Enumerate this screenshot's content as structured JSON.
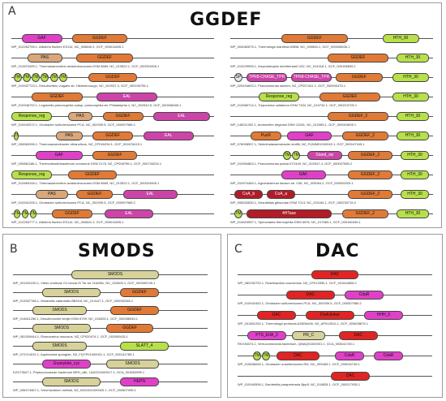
{
  "panels": [
    {
      "id": "A",
      "label": "A",
      "title": "GGDEF",
      "rows": [
        {
          "caption": "WP_012262755.1, Aliivibrio fischeri ES114, NC_006840.2, GCF_000011805.1",
          "domains": [
            {
              "n": "GAF",
              "c": "#e040c8",
              "s": 0.05,
              "e": 0.25
            },
            {
              "n": "GGDEF",
              "c": "#e07a36",
              "s": 0.3,
              "e": 0.57
            }
          ]
        },
        {
          "caption": "WP_012870499.1, Thermanaerovibrio acidaminovorans DSM 6589, NC_013522.1, GCF_000024905.1",
          "domains": [
            {
              "n": "PAS",
              "c": "#d9a77a",
              "s": 0.08,
              "e": 0.25
            },
            {
              "n": "GGDEF",
              "c": "#e07a36",
              "s": 0.32,
              "e": 0.6
            }
          ]
        },
        {
          "caption": "WP_010937723.1, Desulfovibrio vulgaris str. Hildenborough, NC_002937.3, GCF_000195755.1",
          "domains": [
            {
              "n": "TM",
              "c": "#b8e04a",
              "s": 0.01,
              "e": 0.05,
              "sm": 1
            },
            {
              "n": "TM",
              "c": "#b8e04a",
              "s": 0.055,
              "e": 0.095,
              "sm": 1
            },
            {
              "n": "TM",
              "c": "#b8e04a",
              "s": 0.1,
              "e": 0.14,
              "sm": 1
            },
            {
              "n": "TM",
              "c": "#b8e04a",
              "s": 0.145,
              "e": 0.185,
              "sm": 1
            },
            {
              "n": "TM",
              "c": "#b8e04a",
              "s": 0.19,
              "e": 0.23,
              "sm": 1
            },
            {
              "n": "TM",
              "c": "#b8e04a",
              "s": 0.235,
              "e": 0.275,
              "sm": 1
            },
            {
              "n": "GGDEF",
              "c": "#e07a36",
              "s": 0.38,
              "e": 0.62
            }
          ]
        },
        {
          "caption": "WP_010946792.1, Legionella pneumophila subsp. pneumophila str. Philadelphia 1, NC_002942.5, GCF_000008485.1",
          "domains": [
            {
              "n": "GGDEF",
              "c": "#e07a36",
              "s": 0.1,
              "e": 0.35
            },
            {
              "n": "EAL",
              "c": "#cc44a8",
              "s": 0.42,
              "e": 0.72
            }
          ]
        },
        {
          "caption": "WP_010942572.1, Geobacter sulfurreducens PCA, NC_002939.5, GCF_000007985.2",
          "domains": [
            {
              "n": "Response_reg",
              "c": "#b8e04a",
              "s": 0.0,
              "e": 0.2
            },
            {
              "n": "PAS",
              "c": "#d9a77a",
              "s": 0.28,
              "e": 0.4
            },
            {
              "n": "GGDEF",
              "c": "#e07a36",
              "s": 0.45,
              "e": 0.65
            },
            {
              "n": "EAL",
              "c": "#cc44a8",
              "s": 0.7,
              "e": 0.98
            }
          ]
        },
        {
          "caption": "WP_006560396.1, Thermoanaerobacter ethanolicus, NZ_CP016294.1, GCF_001676415.1",
          "domains": [
            {
              "n": "TM",
              "c": "#b8e04a",
              "s": 0.01,
              "e": 0.035,
              "sm": 1
            },
            {
              "n": "PAS",
              "c": "#d9a77a",
              "s": 0.22,
              "e": 0.35
            },
            {
              "n": "GGDEF",
              "c": "#e07a36",
              "s": 0.4,
              "e": 0.6
            },
            {
              "n": "EAL",
              "c": "#cc44a8",
              "s": 0.65,
              "e": 0.9
            }
          ]
        },
        {
          "caption": "WP_030861186.1, Thermodesulfobacterium commune DSM 2178, NZ_CP008796.1, GCF_000734015.1",
          "domains": [
            {
              "n": "GAF",
              "c": "#e040c8",
              "s": 0.12,
              "e": 0.35
            },
            {
              "n": "GGDEF",
              "c": "#e07a36",
              "s": 0.4,
              "e": 0.62
            }
          ]
        },
        {
          "caption": "WP_012869108.1, Thermanaerovibrio acidaminovorans DSM 6589, NC_013522.1, GCF_000024905.1",
          "domains": [
            {
              "n": "Response_reg",
              "c": "#b8e04a",
              "s": 0.0,
              "e": 0.2
            },
            {
              "n": "GGDEF",
              "c": "#e07a36",
              "s": 0.28,
              "e": 0.52
            }
          ]
        },
        {
          "caption": "WP_010941205.1, Geobacter sulfurreducens PCA, NC_002939.5, GCF_000007985.2",
          "domains": [
            {
              "n": "PAS",
              "c": "#d9a77a",
              "s": 0.12,
              "e": 0.28
            },
            {
              "n": "GGDEF",
              "c": "#e07a36",
              "s": 0.32,
              "e": 0.5
            },
            {
              "n": "EAL",
              "c": "#cc44a8",
              "s": 0.55,
              "e": 0.82
            }
          ]
        },
        {
          "caption": "WP_012263777.1, Aliivibrio fischeri ES114, NC_006841.2, GCF_000011805.1",
          "domains": [
            {
              "n": "TM",
              "c": "#b8e04a",
              "s": 0.01,
              "e": 0.045,
              "sm": 1
            },
            {
              "n": "TM",
              "c": "#b8e04a",
              "s": 0.05,
              "e": 0.085,
              "sm": 1
            },
            {
              "n": "TM",
              "c": "#b8e04a",
              "s": 0.09,
              "e": 0.125,
              "sm": 1
            },
            {
              "n": "GGDEF",
              "c": "#e07a36",
              "s": 0.2,
              "e": 0.4
            },
            {
              "n": "EAL",
              "c": "#cc44a8",
              "s": 0.46,
              "e": 0.7
            }
          ]
        },
        {
          "caption": "WP_004082675.1, Thermotoga maritima MSB8, NC_000853.1, GCF_000008545.1",
          "domains": [
            {
              "n": "GGDEF",
              "c": "#e07a36",
              "s": 0.25,
              "e": 0.58
            },
            {
              "n": "HTH_30",
              "c": "#b8e04a",
              "s": 0.75,
              "e": 0.93
            }
          ]
        },
        {
          "caption": "WP_013229995.1, Amycolatopsis mediterranei U32, NC_014318.1, GCF_000196835.1",
          "domains": [
            {
              "n": "GGDEF",
              "c": "#e07a36",
              "s": 0.48,
              "e": 0.78
            },
            {
              "n": "HTH_30",
              "c": "#b8e04a",
              "s": 0.82,
              "e": 0.98
            }
          ]
        },
        {
          "caption": "WP_025434693.1, Pseudomonas stutzeri, NZ_CP007441.1, GCF_000590475.1",
          "domains": [
            {
              "n": "SP",
              "c": "#e8e8e8",
              "s": 0.02,
              "e": 0.06,
              "sm": 1
            },
            {
              "n": "TPR8-CHASE_TPR",
              "c": "#cc44a8",
              "s": 0.08,
              "e": 0.28
            },
            {
              "n": "TPR8-CHASE_TPR",
              "c": "#cc44a8",
              "s": 0.3,
              "e": 0.5
            },
            {
              "n": "GGDEF",
              "c": "#e07a36",
              "s": 0.52,
              "e": 0.75
            },
            {
              "n": "HTH_30",
              "c": "#b8e04a",
              "s": 0.8,
              "e": 0.98
            }
          ]
        },
        {
          "caption": "WP_013969714.1, Treponema caldarium DSM 7334, NC_015732.1, GCF_000219725.1",
          "domains": [
            {
              "n": "Response_reg",
              "c": "#b8e04a",
              "s": 0.14,
              "e": 0.34
            },
            {
              "n": "GGDEF",
              "c": "#e07a36",
              "s": 0.44,
              "e": 0.74
            },
            {
              "n": "HTH_30",
              "c": "#b8e04a",
              "s": 0.8,
              "e": 0.98
            }
          ]
        },
        {
          "caption": "WP_148211302.1, Ammonifex degensii DSM 12261, NC_013385.1, GCF_000024605.1",
          "domains": [
            {
              "n": "GGDEF_2",
              "c": "#e07a36",
              "s": 0.48,
              "e": 0.78
            },
            {
              "n": "HTH_30",
              "c": "#b8e04a",
              "s": 0.82,
              "e": 0.98
            }
          ]
        },
        {
          "caption": "WP_078008907.1, Selenihalanaerobacter shriftii, NZ_FUWM01000040.1, GCF_900167165.1",
          "domains": [
            {
              "n": "PucR",
              "c": "#e07a36",
              "s": 0.1,
              "e": 0.25
            },
            {
              "n": "GAF",
              "c": "#e040c8",
              "s": 0.28,
              "e": 0.5
            },
            {
              "n": "GGDEF_2",
              "c": "#e07a36",
              "s": 0.55,
              "e": 0.78
            },
            {
              "n": "HTH_30",
              "c": "#b8e04a",
              "s": 0.82,
              "e": 0.98
            }
          ]
        },
        {
          "caption": "WP_010954863.1, Pseudomonas putida KT2440, NC_002947.4, GCF_000007565.2",
          "domains": [
            {
              "n": "TM",
              "c": "#b8e04a",
              "s": 0.26,
              "e": 0.3,
              "sm": 1
            },
            {
              "n": "TM",
              "c": "#b8e04a",
              "s": 0.305,
              "e": 0.345,
              "sm": 1
            },
            {
              "n": "Stand_sw",
              "c": "#cc44a8",
              "s": 0.38,
              "e": 0.55
            },
            {
              "n": "GGDEF_2",
              "c": "#e07a36",
              "s": 0.58,
              "e": 0.8
            },
            {
              "n": "HTH_30",
              "c": "#b8e04a",
              "s": 0.84,
              "e": 0.98
            }
          ]
        },
        {
          "caption": "WP_010974489.1, Agrobacterium fabrum str. C58, NC_003064.2, GCF_000092025.1",
          "domains": [
            {
              "n": "GAF",
              "c": "#e040c8",
              "s": 0.25,
              "e": 0.47
            },
            {
              "n": "GGDEF_2",
              "c": "#e07a36",
              "s": 0.58,
              "e": 0.8
            },
            {
              "n": "HTH_30",
              "c": "#b8e04a",
              "s": 0.84,
              "e": 0.98
            }
          ]
        },
        {
          "caption": "WP_006532830.1, Desulfallas gibsoniae DSM 7213, NC_021184.1, GCF_000233715.2",
          "domains": [
            {
              "n": "CoA_b",
              "c": "#b01c28",
              "s": 0.02,
              "e": 0.16
            },
            {
              "n": "CoA_a",
              "c": "#b01c28",
              "s": 0.18,
              "e": 0.32
            },
            {
              "n": "GGDEF_2",
              "c": "#e07a36",
              "s": 0.58,
              "e": 0.8
            },
            {
              "n": "HTH_30",
              "c": "#b8e04a",
              "s": 0.84,
              "e": 0.98
            }
          ]
        },
        {
          "caption": "WP_014624957.1, Spirochaeta thermophila DSM 6578, NC_017583.1, GCF_000184345.1",
          "domains": [
            {
              "n": "TM",
              "c": "#b8e04a",
              "s": 0.02,
              "e": 0.06,
              "sm": 1
            },
            {
              "n": "4HTase",
              "c": "#b01c28",
              "s": 0.08,
              "e": 0.5
            },
            {
              "n": "GGDEF_2",
              "c": "#e07a36",
              "s": 0.55,
              "e": 0.78
            },
            {
              "n": "HTH_30",
              "c": "#b8e04a",
              "s": 0.82,
              "e": 0.98
            }
          ]
        }
      ]
    },
    {
      "id": "B",
      "label": "B",
      "title": "SMODS",
      "rows": [
        {
          "caption": "WP_001901330.1, Vibrio cholerae O1 biovar El Tor str. N16961, NC_002505.1, GCF_000006745.1",
          "domains": [
            {
              "n": "SMODS",
              "c": "#d6d29a",
              "s": 0.3,
              "e": 0.75
            }
          ]
        },
        {
          "caption": "WP_013307786.1, Moraxella catarrhalis BBH18, NC_014147.1, GCF_000092265.1",
          "domains": [
            {
              "n": "SMODS",
              "c": "#d6d29a",
              "s": 0.15,
              "e": 0.45
            },
            {
              "n": "GGDEF",
              "c": "#e07a36",
              "s": 0.55,
              "e": 0.75
            }
          ]
        },
        {
          "caption": "WP_014811256.1, Desulfomonile tiedjei DSM 6799, NC_018025.1, GCF_000266945.1",
          "domains": [
            {
              "n": "SMODS",
              "c": "#d6d29a",
              "s": 0.1,
              "e": 0.38
            },
            {
              "n": "GGDEF",
              "c": "#e07a36",
              "s": 0.5,
              "e": 0.75
            }
          ]
        },
        {
          "caption": "WP_081309444.1, Roseovarius mucosus, NZ_CP020474.1, GCF_002080415.1",
          "domains": [
            {
              "n": "SMODS",
              "c": "#d6d29a",
              "s": 0.1,
              "e": 0.4
            },
            {
              "n": "GGDEF",
              "c": "#e07a36",
              "s": 0.48,
              "e": 0.72
            }
          ]
        },
        {
          "caption": "WP_072214031.1, Aquimarina spongiae, NZ_FQYP01000001.1, GCF_900141785.1",
          "domains": [
            {
              "n": "SMODS",
              "c": "#d6d29a",
              "s": 0.1,
              "e": 0.38
            },
            {
              "n": "SLATT_4",
              "c": "#b8e04a",
              "s": 0.55,
              "e": 0.8
            }
          ]
        },
        {
          "caption": "KZG73547.1, Peptococcaceae bacterium BRH_c8b, LADO01000017.1, GCA_001652995.1",
          "domains": [
            {
              "n": "Guanylate_cyc",
              "c": "#e040c8",
              "s": 0.15,
              "e": 0.4
            },
            {
              "n": "SMODS",
              "c": "#d6d29a",
              "s": 0.48,
              "e": 0.75
            }
          ]
        },
        {
          "caption": "WP_006474367.1, Sinorhizobium meliloti, NZ_NSGD01000020.1, GCF_002807095.1",
          "domains": [
            {
              "n": "SMODS",
              "c": "#d6d29a",
              "s": 0.15,
              "e": 0.45
            },
            {
              "n": "HEPN",
              "c": "#e040c8",
              "s": 0.55,
              "e": 0.75
            }
          ]
        }
      ]
    },
    {
      "id": "C",
      "label": "C",
      "title": "DAC",
      "rows": [
        {
          "caption": "WP_082092792.1, Roseibacillus coscoensis, NZ_CP013390.1, GCF_001644655.1",
          "domains": [
            {
              "n": "DAC",
              "c": "#e02424",
              "s": 0.38,
              "e": 0.62
            }
          ]
        },
        {
          "caption": "WP_010942452.1, Geobacter sulfurreducens PCA, NC_002939.5, GCF_000007985.2",
          "domains": [
            {
              "n": "DAC",
              "c": "#e02424",
              "s": 0.25,
              "e": 0.5
            },
            {
              "n": "CdaR",
              "c": "#e040c8",
              "s": 0.55,
              "e": 0.75
            }
          ]
        },
        {
          "caption": "WP_041801252.1, Thermotoga profunda AZM34c06, NZ_AP014510.1, GCF_000828675.1",
          "domains": [
            {
              "n": "DAC",
              "c": "#e02424",
              "s": 0.1,
              "e": 0.3
            },
            {
              "n": "DisA-linker",
              "c": "#e02424",
              "s": 0.35,
              "e": 0.6
            },
            {
              "n": "HHH_5",
              "c": "#e040c8",
              "s": 0.65,
              "e": 0.85
            }
          ]
        },
        {
          "caption": "RKX36374.1, Verrucomicrobia bacterium, QNAQ01000001.1, GCA_003641745.1",
          "domains": [
            {
              "n": "PTS_EIIA_2",
              "c": "#e040c8",
              "s": 0.05,
              "e": 0.25
            },
            {
              "n": "PR_C",
              "c": "#d6d29a",
              "s": 0.28,
              "e": 0.45
            },
            {
              "n": "DAC",
              "c": "#e02424",
              "s": 0.52,
              "e": 0.72
            }
          ]
        },
        {
          "caption": "WP_015838265.1, Geobacter uraniireducens Rf4, NC_009483.1, GCF_000016745.1",
          "domains": [
            {
              "n": "TM",
              "c": "#b8e04a",
              "s": 0.08,
              "e": 0.12,
              "sm": 1
            },
            {
              "n": "TM",
              "c": "#b8e04a",
              "s": 0.125,
              "e": 0.165,
              "sm": 1
            },
            {
              "n": "DAC",
              "c": "#e02424",
              "s": 0.2,
              "e": 0.42
            },
            {
              "n": "CdaR",
              "c": "#e040c8",
              "s": 0.5,
              "e": 0.65
            },
            {
              "n": "CdaR",
              "c": "#e040c8",
              "s": 0.7,
              "e": 0.85
            }
          ]
        },
        {
          "caption": "WP_010940596.1, Bordetella parapertussis Bpp5, NC_018828.1, GCF_000217935.1",
          "domains": [
            {
              "n": "DAC",
              "c": "#e02424",
              "s": 0.48,
              "e": 0.68
            }
          ]
        }
      ]
    }
  ]
}
